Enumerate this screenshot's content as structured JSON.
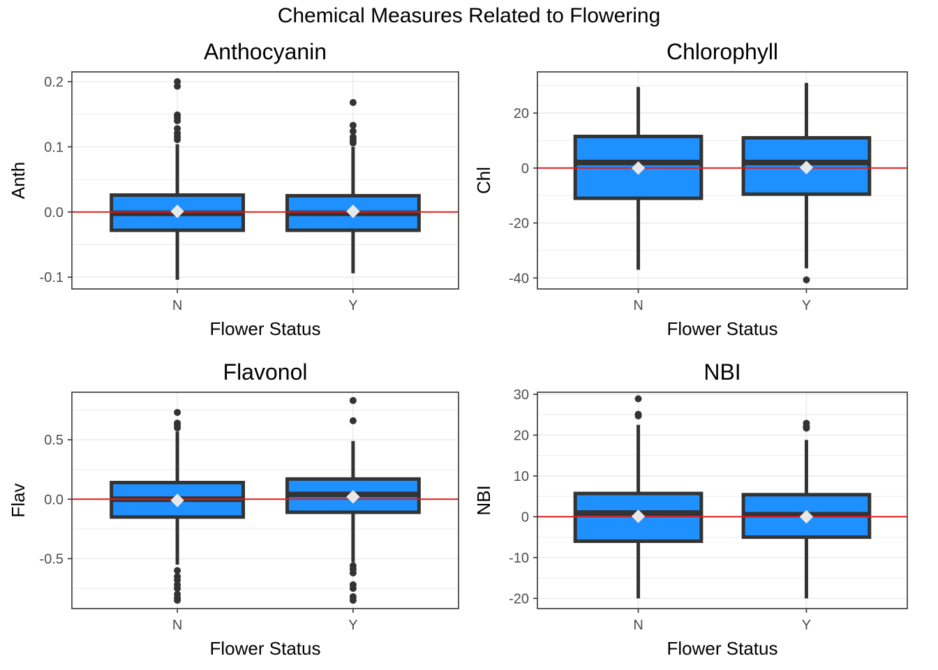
{
  "figure": {
    "title": "Chemical Measures Related to Flowering"
  },
  "colors": {
    "box_fill": "#1E90FF",
    "box_line": "#333333",
    "outlier": "#333333",
    "mean_marker": "#E8E8E8",
    "ref_line": "#E31A1C",
    "grid": "#EBEBEB",
    "panel_border": "#333333"
  },
  "chart_data": [
    {
      "type": "boxplot",
      "title": "Anthocyanin",
      "xlabel": "Flower Status",
      "ylabel": "Anth",
      "categories": [
        "N",
        "Y"
      ],
      "ylim": [
        -0.118,
        0.215
      ],
      "yticks": [
        -0.1,
        0.0,
        0.1,
        0.2
      ],
      "ytick_labels": [
        "-0.1",
        "0.0",
        "0.1",
        "0.2"
      ],
      "reference_line": 0,
      "grid": true,
      "boxes": [
        {
          "category": "N",
          "whisker_low": -0.104,
          "q1": -0.028,
          "median": -0.002,
          "q3": 0.026,
          "whisker_high": 0.104,
          "mean": 0.001,
          "outliers": [
            0.2,
            0.193,
            0.149,
            0.145,
            0.14,
            0.128,
            0.121,
            0.116,
            0.111
          ]
        },
        {
          "category": "Y",
          "whisker_low": -0.094,
          "q1": -0.028,
          "median": -0.002,
          "q3": 0.025,
          "whisker_high": 0.1,
          "mean": 0.001,
          "outliers": [
            0.168,
            0.133,
            0.124,
            0.115,
            0.11,
            0.106
          ]
        }
      ]
    },
    {
      "type": "boxplot",
      "title": "Chlorophyll",
      "xlabel": "Flower Status",
      "ylabel": "Chl",
      "categories": [
        "N",
        "Y"
      ],
      "ylim": [
        -44,
        35
      ],
      "yticks": [
        -40,
        -20,
        0,
        20
      ],
      "ytick_labels": [
        "-40",
        "-20",
        "0",
        "20"
      ],
      "reference_line": 0,
      "grid": true,
      "boxes": [
        {
          "category": "N",
          "whisker_low": -37,
          "q1": -11,
          "median": 2,
          "q3": 11.5,
          "whisker_high": 29.5,
          "mean": 0,
          "outliers": []
        },
        {
          "category": "Y",
          "whisker_low": -36.5,
          "q1": -9.5,
          "median": 2,
          "q3": 11,
          "whisker_high": 31,
          "mean": 0.2,
          "outliers": [
            -40.7
          ]
        }
      ]
    },
    {
      "type": "boxplot",
      "title": "Flavonol",
      "xlabel": "Flower Status",
      "ylabel": "Flav",
      "categories": [
        "N",
        "Y"
      ],
      "ylim": [
        -0.92,
        0.9
      ],
      "yticks": [
        -0.5,
        0.0,
        0.5
      ],
      "ytick_labels": [
        "-0.5",
        "0.0",
        "0.5"
      ],
      "reference_line": 0,
      "grid": true,
      "boxes": [
        {
          "category": "N",
          "whisker_low": -0.55,
          "q1": -0.15,
          "median": 0.0,
          "q3": 0.14,
          "whisker_high": 0.57,
          "mean": -0.01,
          "outliers": [
            0.73,
            0.64,
            0.62,
            0.6,
            -0.6,
            -0.65,
            -0.68,
            -0.72,
            -0.75,
            -0.8,
            -0.83,
            -0.85
          ]
        },
        {
          "category": "Y",
          "whisker_low": -0.53,
          "q1": -0.11,
          "median": 0.04,
          "q3": 0.17,
          "whisker_high": 0.49,
          "mean": 0.02,
          "outliers": [
            0.83,
            0.66,
            -0.56,
            -0.59,
            -0.62,
            -0.72,
            -0.75,
            -0.82,
            -0.85
          ]
        }
      ]
    },
    {
      "type": "boxplot",
      "title": "NBI",
      "xlabel": "Flower Status",
      "ylabel": "NBI",
      "categories": [
        "N",
        "Y"
      ],
      "ylim": [
        -22.5,
        30.5
      ],
      "yticks": [
        -20,
        -10,
        0,
        10,
        20,
        30
      ],
      "ytick_labels": [
        "-20",
        "-10",
        "0",
        "10",
        "20",
        "30"
      ],
      "reference_line": 0,
      "grid": true,
      "boxes": [
        {
          "category": "N",
          "whisker_low": -20,
          "q1": -6,
          "median": 0.9,
          "q3": 5.7,
          "whisker_high": 22.5,
          "mean": 0.1,
          "outliers": [
            28.9,
            25.1,
            24.7
          ]
        },
        {
          "category": "Y",
          "whisker_low": -20,
          "q1": -5,
          "median": 0.5,
          "q3": 5.4,
          "whisker_high": 18.8,
          "mean": 0,
          "outliers": [
            22.9,
            22.1,
            21.7
          ]
        }
      ]
    }
  ]
}
